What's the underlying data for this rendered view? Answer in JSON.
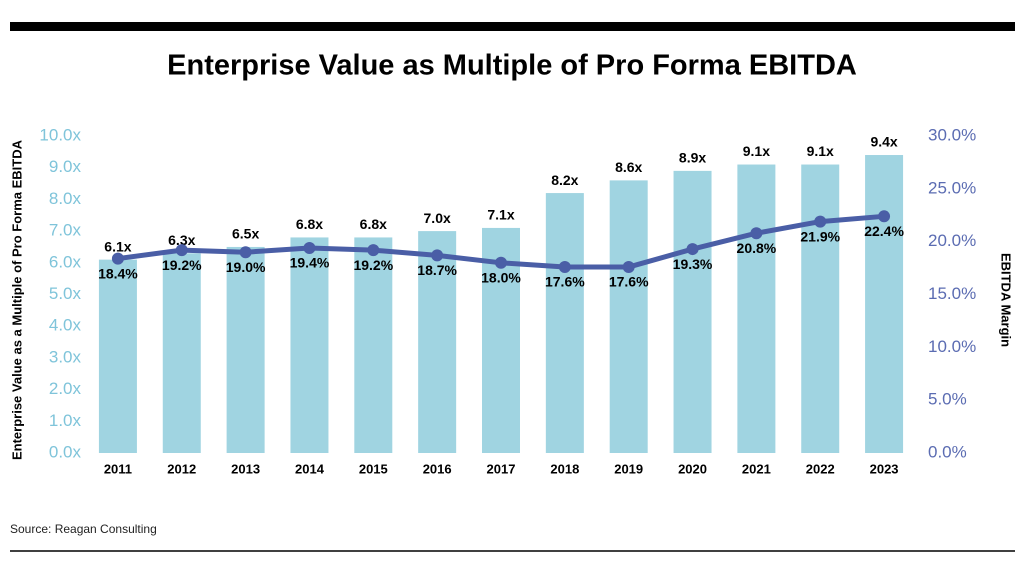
{
  "chart_data": {
    "type": "bar-line",
    "title": "Enterprise Value as Multiple of Pro Forma EBITDA",
    "ylabel": "Enterprise Value as a Multiple of Pro Forma EBITDA",
    "y2label": "EBITDA Margin",
    "source": "Source: Reagan Consulting",
    "categories": [
      "2011",
      "2012",
      "2013",
      "2014",
      "2015",
      "2016",
      "2017",
      "2018",
      "2019",
      "2020",
      "2021",
      "2022",
      "2023"
    ],
    "series": [
      {
        "type": "bar",
        "color": "#a0d4e1",
        "values": [
          6.1,
          6.3,
          6.5,
          6.8,
          6.8,
          7.0,
          7.1,
          8.2,
          8.6,
          8.9,
          9.1,
          9.1,
          9.4
        ],
        "value_labels": [
          "6.1x",
          "6.3x",
          "6.5x",
          "6.8x",
          "6.8x",
          "7.0x",
          "7.1x",
          "8.2x",
          "8.6x",
          "8.9x",
          "9.1x",
          "9.1x",
          "9.4x"
        ]
      },
      {
        "type": "line",
        "axis": "y2",
        "color": "#4a5ea6",
        "values": [
          18.4,
          19.2,
          19.0,
          19.4,
          19.2,
          18.7,
          18.0,
          17.6,
          17.6,
          19.3,
          20.8,
          21.9,
          22.4
        ],
        "value_labels": [
          "18.4%",
          "19.2%",
          "19.0%",
          "19.4%",
          "19.2%",
          "18.7%",
          "18.0%",
          "17.6%",
          "17.6%",
          "19.3%",
          "20.8%",
          "21.9%",
          "22.4%"
        ]
      }
    ],
    "ylim": [
      0,
      10
    ],
    "yticks": [
      {
        "value": 0,
        "label": "0.0x"
      },
      {
        "value": 1,
        "label": "1.0x"
      },
      {
        "value": 2,
        "label": "2.0x"
      },
      {
        "value": 3,
        "label": "3.0x"
      },
      {
        "value": 4,
        "label": "4.0x"
      },
      {
        "value": 5,
        "label": "5.0x"
      },
      {
        "value": 6,
        "label": "6.0x"
      },
      {
        "value": 7,
        "label": "7.0x"
      },
      {
        "value": 8,
        "label": "8.0x"
      },
      {
        "value": 9,
        "label": "9.0x"
      },
      {
        "value": 10,
        "label": "10.0x"
      }
    ],
    "y2lim": [
      0,
      30
    ],
    "y2ticks": [
      {
        "value": 0,
        "label": "0.0%"
      },
      {
        "value": 5,
        "label": "5.0%"
      },
      {
        "value": 10,
        "label": "10.0%"
      },
      {
        "value": 15,
        "label": "15.0%"
      },
      {
        "value": 20,
        "label": "20.0%"
      },
      {
        "value": 25,
        "label": "25.0%"
      },
      {
        "value": 30,
        "label": "30.0%"
      }
    ],
    "grid": false
  }
}
